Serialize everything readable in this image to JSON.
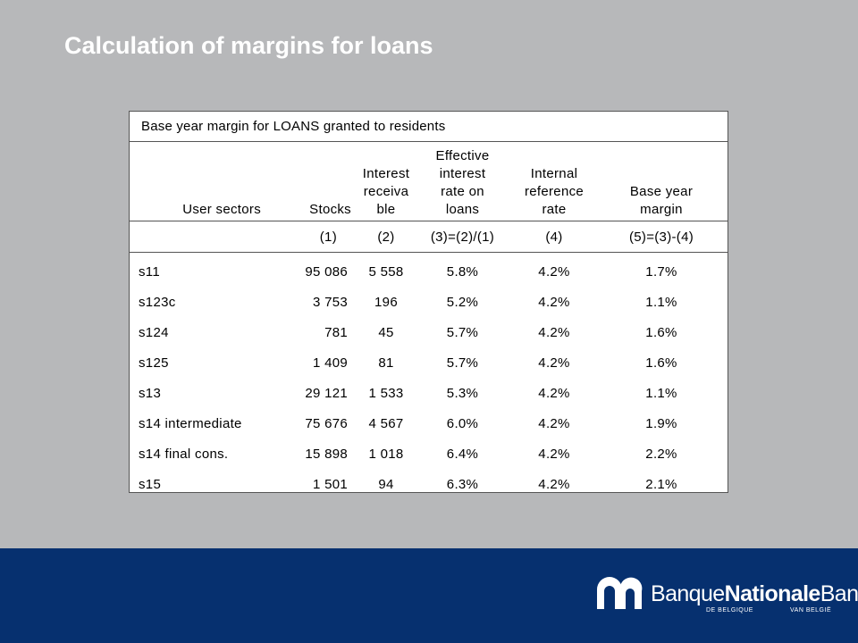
{
  "slide": {
    "title": "Calculation of margins for loans"
  },
  "table": {
    "caption": "Base year margin for LOANS granted to residents",
    "headers": [
      [
        "User sectors"
      ],
      [
        "Stocks"
      ],
      [
        "Interest",
        "receiva",
        "ble"
      ],
      [
        "Effective",
        "interest",
        "rate on",
        "loans"
      ],
      [
        "Internal",
        "reference",
        "rate"
      ],
      [
        "Base year",
        "margin"
      ]
    ],
    "column_numbers": [
      "(1)",
      "(2)",
      "(3)=(2)/(1)",
      "(4)",
      "(5)=(3)-(4)"
    ],
    "rows": [
      [
        "s11",
        "95 086",
        "5 558",
        "5.8%",
        "4.2%",
        "1.7%"
      ],
      [
        "s123c",
        "3 753",
        "196",
        "5.2%",
        "4.2%",
        "1.1%"
      ],
      [
        "s124",
        "781",
        "45",
        "5.7%",
        "4.2%",
        "1.6%"
      ],
      [
        "s125",
        "1 409",
        "81",
        "5.7%",
        "4.2%",
        "1.6%"
      ],
      [
        "s13",
        "29 121",
        "1 533",
        "5.3%",
        "4.2%",
        "1.1%"
      ],
      [
        "s14 intermediate",
        "75 676",
        "4 567",
        "6.0%",
        "4.2%",
        "1.9%"
      ],
      [
        "s14 final cons.",
        "15 898",
        "1 018",
        "6.4%",
        "4.2%",
        "2.2%"
      ],
      [
        "s15",
        "1 501",
        "94",
        "6.3%",
        "4.2%",
        "2.1%"
      ]
    ]
  },
  "footer": {
    "logo": {
      "name_part1": "Banque",
      "name_part2": "Nationale",
      "name_part3": "Bank",
      "sub_left": "DE BELGIQUE",
      "sub_right": "VAN BELGIË"
    },
    "colors": {
      "band": "#06306f",
      "slide_bg": "#b7b8ba"
    }
  }
}
